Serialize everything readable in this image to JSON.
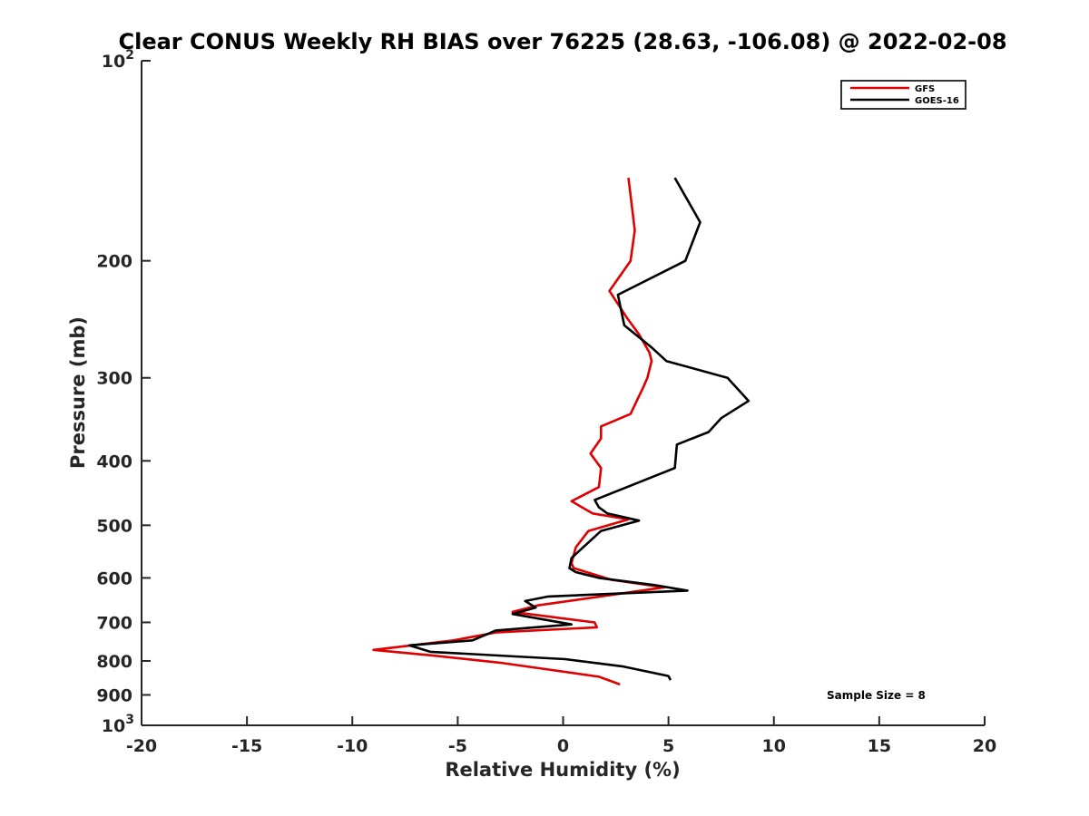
{
  "chart_data": {
    "type": "line",
    "title": "Clear CONUS Weekly RH BIAS over 76225 (28.63, -106.08) @ 2022-02-08",
    "xlabel": "Relative Humidity (%)",
    "ylabel": "Pressure (mb)",
    "xlim": [
      -20,
      20
    ],
    "ylim": [
      100,
      1000
    ],
    "y_scale": "log",
    "y_reversed": true,
    "grid": false,
    "legend_position": "top-right",
    "x_ticks": [
      -20,
      -15,
      -10,
      -5,
      0,
      5,
      10,
      15,
      20
    ],
    "x_tick_labels": [
      "-20",
      "-15",
      "-10",
      "-5",
      "0",
      "5",
      "10",
      "15",
      "20"
    ],
    "y_ticks": [
      100,
      200,
      300,
      400,
      500,
      600,
      700,
      800,
      900,
      1000
    ],
    "y_tick_labels": [
      {
        "base": "10",
        "exp": "2"
      },
      {
        "base": "200"
      },
      {
        "base": "300"
      },
      {
        "base": "400"
      },
      {
        "base": "500"
      },
      {
        "base": "600"
      },
      {
        "base": "700"
      },
      {
        "base": "800"
      },
      {
        "base": "900"
      },
      {
        "base": "10",
        "exp": "3"
      }
    ],
    "annotation": "Sample Size = 8",
    "series": [
      {
        "name": "GFS",
        "color": "#e00000",
        "x": [
          3.1,
          3.4,
          3.2,
          2.2,
          3.0,
          3.6,
          4.1,
          4.2,
          4.0,
          3.8,
          3.2,
          1.8,
          1.8,
          1.3,
          1.8,
          1.7,
          0.4,
          1.4,
          3.1,
          1.2,
          0.6,
          0.4,
          0.5,
          2.3,
          4.8,
          -1.2,
          -2.4,
          1.5,
          1.6,
          -3.2,
          -5.2,
          -9.0,
          -6.2,
          -3.0,
          1.7,
          2.7
        ],
        "y": [
          150,
          180,
          200,
          222,
          243,
          258,
          275,
          283,
          300,
          310,
          340,
          355,
          370,
          390,
          410,
          438,
          460,
          480,
          490,
          510,
          540,
          570,
          580,
          604,
          620,
          660,
          675,
          700,
          712,
          725,
          745,
          770,
          785,
          805,
          845,
          868
        ]
      },
      {
        "name": "GOES-16",
        "color": "#000000",
        "x": [
          5.3,
          6.5,
          5.8,
          2.6,
          2.9,
          4.2,
          4.9,
          7.8,
          8.8,
          7.5,
          6.9,
          5.4,
          5.3,
          1.5,
          1.7,
          2.1,
          3.6,
          1.8,
          0.4,
          0.3,
          0.6,
          1.7,
          4.3,
          5.9,
          -0.7,
          -1.8,
          -1.3,
          -2.4,
          0.4,
          -3.2,
          -4.3,
          -7.3,
          -6.3,
          0.1,
          2.8,
          5.0,
          5.1
        ],
        "y": [
          150,
          175,
          200,
          225,
          250,
          270,
          283,
          300,
          325,
          345,
          362,
          378,
          410,
          458,
          470,
          480,
          492,
          510,
          560,
          580,
          588,
          600,
          615,
          627,
          640,
          650,
          665,
          680,
          705,
          720,
          745,
          758,
          775,
          795,
          815,
          843,
          855
        ]
      }
    ]
  }
}
